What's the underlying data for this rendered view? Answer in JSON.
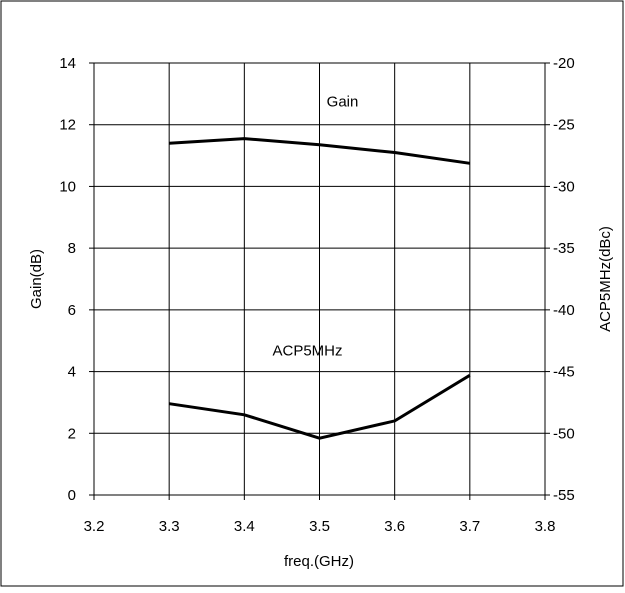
{
  "chart_data": {
    "type": "line",
    "title": "",
    "xlabel": "freq.(GHz)",
    "ylabel_left": "Gain(dB)",
    "ylabel_right": "ACP5MHz(dBc)",
    "xlim": [
      3.2,
      3.8
    ],
    "ylim_left": [
      0,
      14
    ],
    "ylim_right": [
      -55,
      -20
    ],
    "x_ticks": [
      "3.2",
      "3.3",
      "3.4",
      "3.5",
      "3.6",
      "3.7",
      "3.8"
    ],
    "y_left_ticks": [
      "0",
      "2",
      "4",
      "6",
      "8",
      "10",
      "12",
      "14"
    ],
    "y_right_ticks": [
      "-55",
      "-50",
      "-45",
      "-40",
      "-35",
      "-30",
      "-25",
      "-20"
    ],
    "grid": true,
    "series": [
      {
        "name": "Gain",
        "axis": "left",
        "x": [
          3.3,
          3.4,
          3.5,
          3.6,
          3.7
        ],
        "values": [
          11.4,
          11.55,
          11.35,
          11.1,
          10.75
        ]
      },
      {
        "name": "ACP5MHz",
        "axis": "right",
        "x": [
          3.3,
          3.4,
          3.5,
          3.6,
          3.7
        ],
        "values": [
          -47.6,
          -48.5,
          -50.4,
          -49.0,
          -45.3
        ]
      }
    ],
    "colors": {
      "line": "#000000",
      "grid": "#000000",
      "frame": "#000000"
    }
  }
}
